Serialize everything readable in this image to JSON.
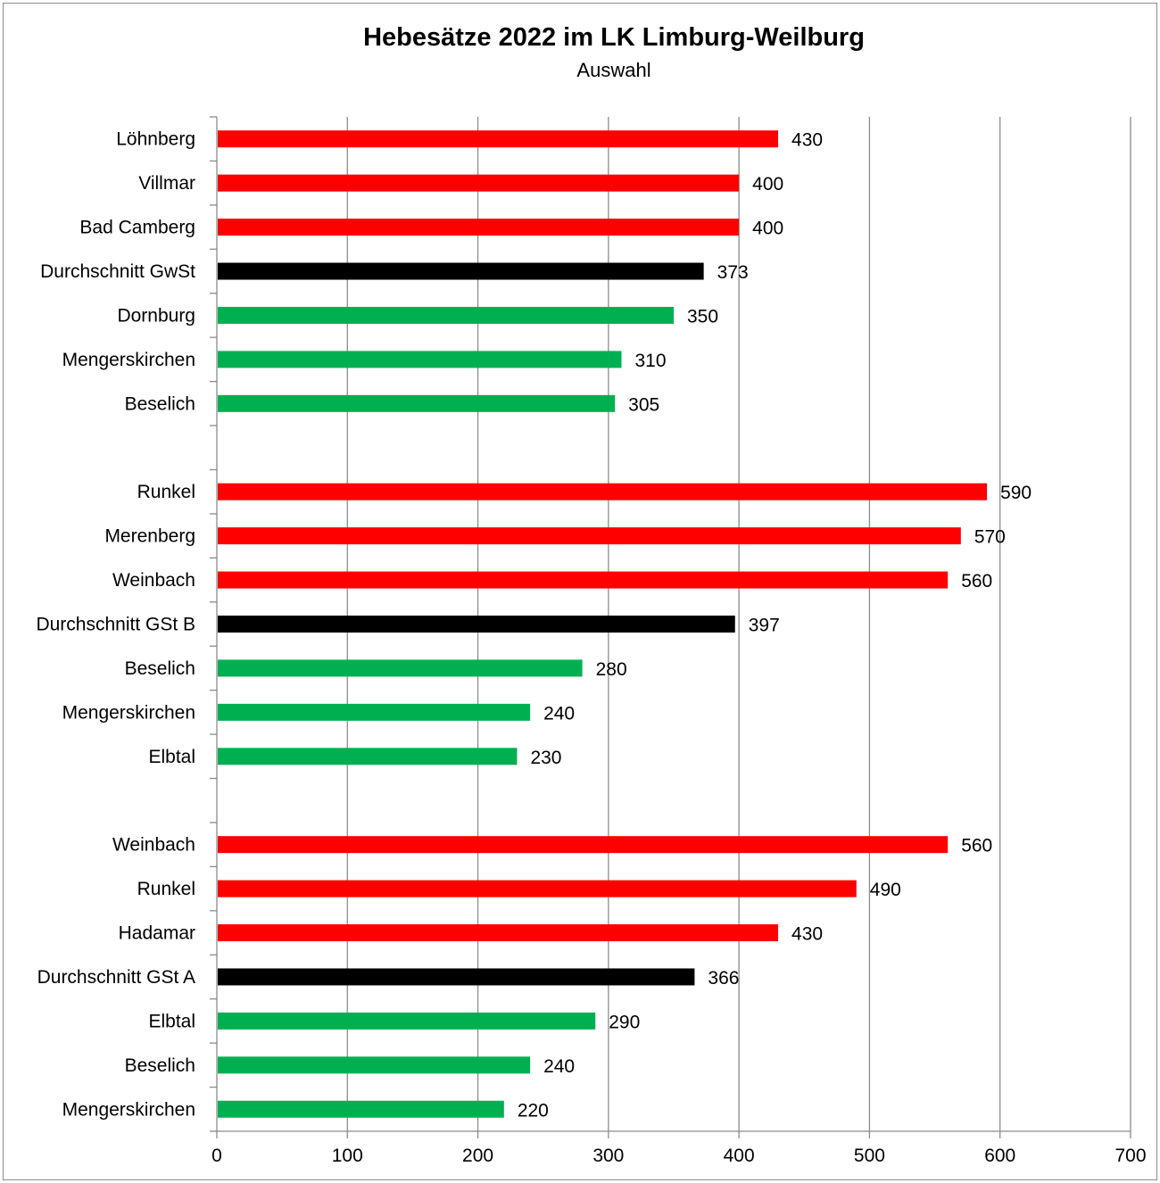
{
  "chart_data": {
    "type": "bar",
    "orientation": "horizontal",
    "title": "Hebesätze 2022 im LK Limburg-Weilburg",
    "subtitle": "Auswahl",
    "xlim": [
      0,
      700
    ],
    "x_ticks": [
      "0",
      "100",
      "200",
      "300",
      "400",
      "500",
      "600",
      "700"
    ],
    "grid": true,
    "colors": {
      "high": "#ff0000",
      "average": "#000000",
      "low": "#00b050"
    },
    "categories": [
      "Löhnberg",
      "Villmar",
      "Bad Camberg",
      "Durchschnitt GwSt",
      "Dornburg",
      "Mengerskirchen",
      "Beselich",
      "",
      "Runkel",
      "Merenberg",
      "Weinbach",
      "Durchschnitt GSt B",
      "Beselich",
      "Mengerskirchen",
      "Elbtal",
      "",
      "Weinbach",
      "Runkel",
      "Hadamar",
      "Durchschnitt GSt A",
      "Elbtal",
      "Beselich",
      "Mengerskirchen"
    ],
    "values": [
      430,
      400,
      400,
      373,
      350,
      310,
      305,
      null,
      590,
      570,
      560,
      397,
      280,
      240,
      230,
      null,
      560,
      490,
      430,
      366,
      290,
      240,
      220
    ],
    "value_labels": [
      "430",
      "400",
      "400",
      "373",
      "350",
      "310",
      "305",
      "",
      "590",
      "570",
      "560",
      "397",
      "280",
      "240",
      "230",
      "",
      "560",
      "490",
      "430",
      "366",
      "290",
      "240",
      "220"
    ],
    "bar_colors": [
      "#ff0000",
      "#ff0000",
      "#ff0000",
      "#000000",
      "#00b050",
      "#00b050",
      "#00b050",
      null,
      "#ff0000",
      "#ff0000",
      "#ff0000",
      "#000000",
      "#00b050",
      "#00b050",
      "#00b050",
      null,
      "#ff0000",
      "#ff0000",
      "#ff0000",
      "#000000",
      "#00b050",
      "#00b050",
      "#00b050"
    ]
  }
}
